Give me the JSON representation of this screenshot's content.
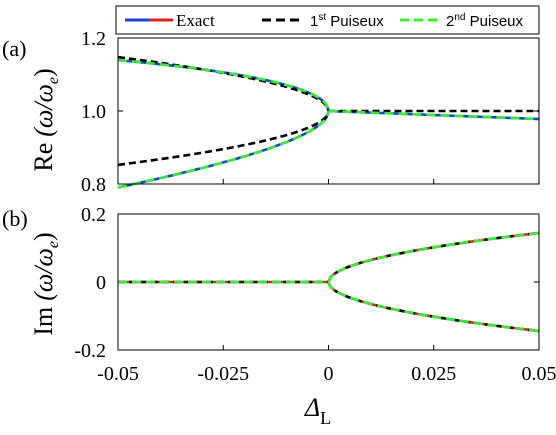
{
  "chart_data": [
    {
      "panel_label": "(a)",
      "type": "line",
      "ylabel_prefix": "Re",
      "ylabel_math": "(ω/ω",
      "ylabel_sub": "e",
      "ylabel_close": ")",
      "xlim": [
        -0.05,
        0.05
      ],
      "ylim": [
        0.8,
        1.2
      ],
      "yticks": [
        0.8,
        1.0,
        1.2
      ],
      "ytick_labels": [
        "0.8",
        "1.0",
        "1.2"
      ],
      "series": [
        {
          "name": "Exact",
          "color": "#1f3fd8",
          "style": "solid",
          "branches": [
            "re_exact_upper",
            "re_exact_lower",
            "re_right"
          ]
        },
        {
          "name": "Exact",
          "color": "#e02020",
          "style": "solid"
        },
        {
          "name": "1st Puiseux",
          "color": "#000000",
          "style": "dash",
          "branches": [
            "re_p1_upper",
            "re_p1_lower",
            "re_right_flat"
          ]
        },
        {
          "name": "2nd Puiseux",
          "color": "#33ee33",
          "style": "dash",
          "branches": [
            "re_exact_upper",
            "re_exact_lower",
            "re_right"
          ]
        }
      ],
      "branch_models": {
        "re_exact_upper": {
          "x": [
            -0.05,
            0
          ],
          "formula": "1 + 0.78*sqrt(-x) - 0.7*(-x)"
        },
        "re_exact_lower": {
          "x": [
            -0.05,
            0
          ],
          "formula": "1 - 0.78*sqrt(-x) - 0.7*(-x)"
        },
        "re_right": {
          "x": [
            0,
            0.05
          ],
          "formula": "1 - 0.44*x"
        },
        "re_p1_upper": {
          "x": [
            -0.05,
            0
          ],
          "formula": "1 + 0.66*sqrt(-x)"
        },
        "re_p1_lower": {
          "x": [
            -0.05,
            0
          ],
          "formula": "1 - 0.66*sqrt(-x)"
        },
        "re_right_flat": {
          "x": [
            0,
            0.05
          ],
          "formula": "1.0"
        }
      }
    },
    {
      "panel_label": "(b)",
      "type": "line",
      "ylabel_prefix": "Im",
      "ylabel_math": "(ω/ω",
      "ylabel_sub": "e",
      "ylabel_close": ")",
      "xlim": [
        -0.05,
        0.05
      ],
      "ylim": [
        -0.2,
        0.2
      ],
      "yticks": [
        -0.2,
        0,
        0.2
      ],
      "ytick_labels": [
        "-0.2",
        "0",
        "0.2"
      ],
      "xticks": [
        -0.05,
        -0.025,
        0,
        0.025,
        0.05
      ],
      "xtick_labels": [
        "-0.05",
        "-0.025",
        "0",
        "0.025",
        "0.05"
      ],
      "xlabel_main": "Δ",
      "xlabel_sub": "L",
      "series": [
        {
          "name": "Exact",
          "color": "#e02020",
          "style": "solid",
          "branches": [
            "im_zero",
            "im_upper",
            "im_lower"
          ]
        },
        {
          "name": "1st Puiseux",
          "color": "#000000",
          "style": "dash",
          "branches": [
            "im_zero",
            "im_upper",
            "im_lower"
          ]
        },
        {
          "name": "2nd Puiseux",
          "color": "#33ee33",
          "style": "dash",
          "branches": [
            "im_zero",
            "im_upper",
            "im_lower"
          ]
        }
      ],
      "branch_models": {
        "im_zero": {
          "x": [
            -0.05,
            0
          ],
          "formula": "0"
        },
        "im_upper": {
          "x": [
            0,
            0.05
          ],
          "formula": "0.645*sqrt(x)"
        },
        "im_lower": {
          "x": [
            0,
            0.05
          ],
          "formula": "-0.645*sqrt(x)"
        }
      }
    }
  ],
  "legend": {
    "items": [
      {
        "label": "Exact",
        "colors": [
          "#1f3fd8",
          "#e02020"
        ],
        "style": "solid"
      },
      {
        "label_main": "1",
        "label_sup": "st",
        "label_tail": " Puiseux",
        "colors": [
          "#000000"
        ],
        "style": "dash"
      },
      {
        "label_main": "2",
        "label_sup": "nd",
        "label_tail": " Puiseux",
        "colors": [
          "#33ee33"
        ],
        "style": "dash"
      }
    ]
  }
}
